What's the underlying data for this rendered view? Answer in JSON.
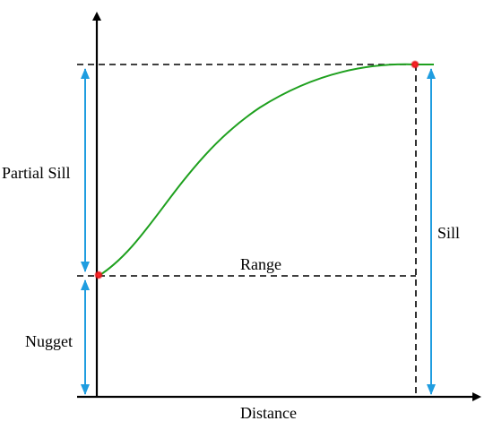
{
  "labels": {
    "partial_sill": "Partial Sill",
    "nugget": "Nugget",
    "range": "Range",
    "sill": "Sill",
    "x_axis": "Distance"
  },
  "colors": {
    "axis": "#000000",
    "curve": "#1ea01e",
    "arrow": "#1f9de0",
    "dash": "#000000",
    "point": "#e8161b"
  }
}
